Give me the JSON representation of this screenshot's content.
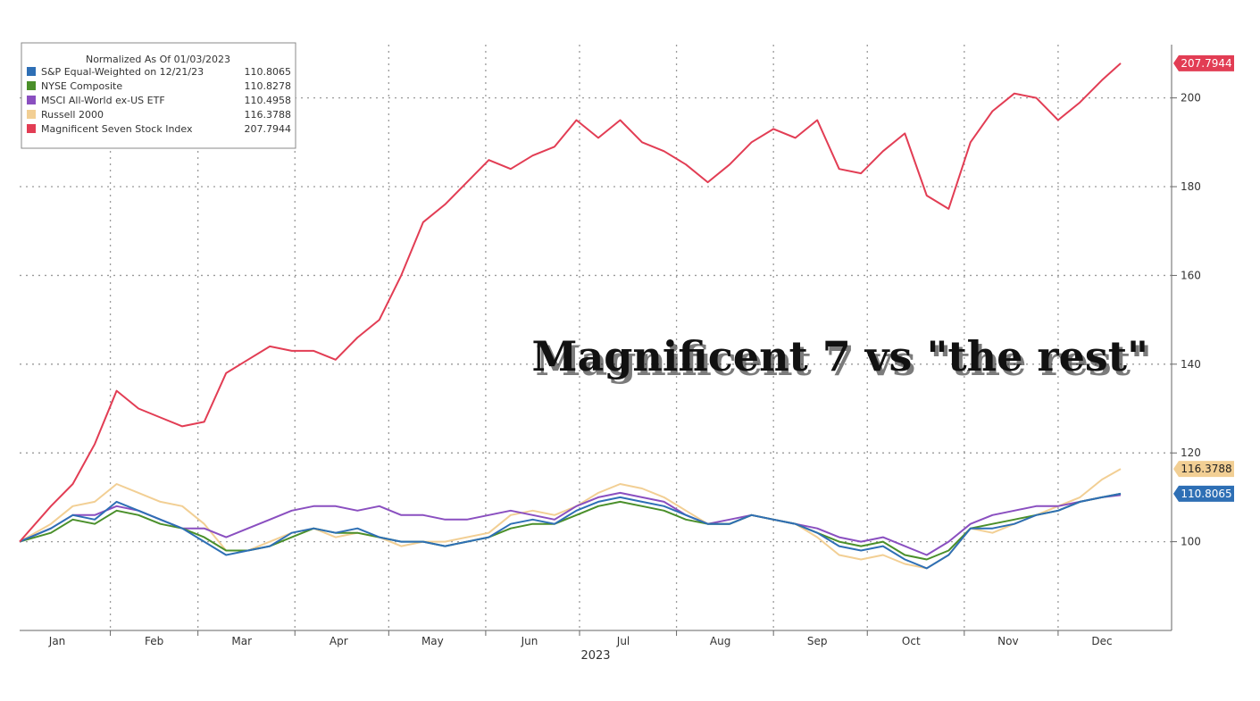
{
  "chart_data": {
    "type": "line",
    "legend_title": "Normalized As Of 01/03/2023",
    "xlabel": "2023",
    "annotation": "Magnificent 7 vs \"the rest\"",
    "months": [
      "Jan",
      "Feb",
      "Mar",
      "Apr",
      "May",
      "Jun",
      "Jul",
      "Aug",
      "Sep",
      "Oct",
      "Nov",
      "Dec"
    ],
    "x": [
      "2023-01-03",
      "2023-01-13",
      "2023-01-20",
      "2023-01-27",
      "2023-02-03",
      "2023-02-10",
      "2023-02-17",
      "2023-02-24",
      "2023-03-03",
      "2023-03-10",
      "2023-03-17",
      "2023-03-24",
      "2023-03-31",
      "2023-04-07",
      "2023-04-14",
      "2023-04-21",
      "2023-04-28",
      "2023-05-05",
      "2023-05-12",
      "2023-05-19",
      "2023-05-26",
      "2023-06-02",
      "2023-06-09",
      "2023-06-16",
      "2023-06-23",
      "2023-06-30",
      "2023-07-07",
      "2023-07-14",
      "2023-07-21",
      "2023-07-28",
      "2023-08-04",
      "2023-08-11",
      "2023-08-18",
      "2023-08-25",
      "2023-09-01",
      "2023-09-08",
      "2023-09-15",
      "2023-09-22",
      "2023-09-29",
      "2023-10-06",
      "2023-10-13",
      "2023-10-20",
      "2023-10-27",
      "2023-11-03",
      "2023-11-10",
      "2023-11-17",
      "2023-11-24",
      "2023-12-01",
      "2023-12-08",
      "2023-12-15",
      "2023-12-21"
    ],
    "series": [
      {
        "name": "S&P Equal-Weighted on 12/21/23",
        "last": "110.8065",
        "color": "#2e6fb5",
        "values": [
          100,
          103,
          106,
          105,
          109,
          107,
          105,
          103,
          100,
          97,
          98,
          99,
          102,
          103,
          102,
          103,
          101,
          100,
          100,
          99,
          100,
          101,
          104,
          105,
          104,
          107,
          109,
          110,
          109,
          108,
          106,
          104,
          104,
          106,
          105,
          104,
          102,
          99,
          98,
          99,
          96,
          94,
          97,
          103,
          103,
          104,
          106,
          107,
          109,
          110,
          110.8
        ]
      },
      {
        "name": "NYSE Composite",
        "last": "110.8278",
        "color": "#4a8f2a",
        "values": [
          100,
          102,
          105,
          104,
          107,
          106,
          104,
          103,
          101,
          98,
          98,
          99,
          101,
          103,
          102,
          102,
          101,
          100,
          100,
          99,
          100,
          101,
          103,
          104,
          104,
          106,
          108,
          109,
          108,
          107,
          105,
          104,
          104,
          106,
          105,
          104,
          102,
          100,
          99,
          100,
          97,
          96,
          98,
          103,
          104,
          105,
          106,
          107,
          109,
          110,
          110.8
        ]
      },
      {
        "name": "MSCI All-World ex-US ETF",
        "last": "110.4958",
        "color": "#8a4fc0",
        "values": [
          100,
          103,
          106,
          106,
          108,
          107,
          105,
          103,
          103,
          101,
          103,
          105,
          107,
          108,
          108,
          107,
          108,
          106,
          106,
          105,
          105,
          106,
          107,
          106,
          105,
          108,
          110,
          111,
          110,
          109,
          106,
          104,
          105,
          106,
          105,
          104,
          103,
          101,
          100,
          101,
          99,
          97,
          100,
          104,
          106,
          107,
          108,
          108,
          109,
          110,
          110.5
        ]
      },
      {
        "name": "Russell 2000",
        "last": "116.3788",
        "color": "#f2cf94",
        "values": [
          100,
          104,
          108,
          109,
          113,
          111,
          109,
          108,
          104,
          98,
          98,
          100,
          102,
          103,
          101,
          102,
          101,
          99,
          100,
          100,
          101,
          102,
          106,
          107,
          106,
          108,
          111,
          113,
          112,
          110,
          107,
          104,
          104,
          106,
          105,
          104,
          101,
          97,
          96,
          97,
          95,
          94,
          97,
          103,
          102,
          104,
          106,
          108,
          110,
          114,
          116.4
        ]
      },
      {
        "name": "Magnificent Seven Stock Index",
        "last": "207.7944",
        "color": "#e23d54",
        "values": [
          100,
          108,
          113,
          122,
          134,
          130,
          128,
          126,
          127,
          138,
          141,
          144,
          143,
          143,
          141,
          146,
          150,
          160,
          172,
          176,
          181,
          186,
          184,
          187,
          189,
          195,
          191,
          195,
          190,
          188,
          185,
          181,
          185,
          190,
          193,
          191,
          195,
          184,
          183,
          188,
          192,
          178,
          175,
          190,
          197,
          201,
          200,
          195,
          199,
          204,
          207.8
        ]
      }
    ],
    "ylim": [
      80,
      212
    ],
    "yticks": [
      100,
      120,
      140,
      160,
      180,
      200
    ],
    "legend_position": "top-left",
    "grid": true
  }
}
